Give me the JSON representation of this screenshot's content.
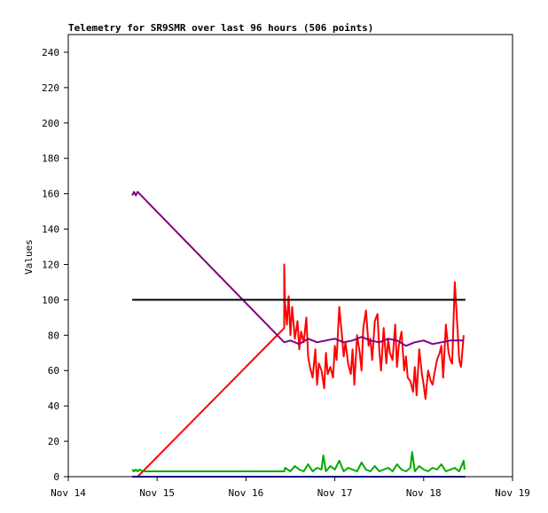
{
  "chart_data": {
    "type": "line",
    "title": "Telemetry for SR9SMR over last 96 hours (506 points)",
    "xlabel": "",
    "ylabel": "Values",
    "xlim": [
      "Nov 14",
      "Nov 19"
    ],
    "x_ticks": [
      "Nov 14",
      "Nov 15",
      "Nov 16",
      "Nov 17",
      "Nov 18",
      "Nov 19"
    ],
    "ylim": [
      0,
      250
    ],
    "y_ticks": [
      0,
      20,
      40,
      60,
      80,
      100,
      120,
      140,
      160,
      180,
      200,
      220,
      240
    ],
    "grid": false,
    "legend": "none",
    "series": [
      {
        "color": "#ff0000",
        "x": [
          14.78,
          16.43,
          16.43,
          16.44,
          16.46,
          16.48,
          16.5,
          16.52,
          16.55,
          16.58,
          16.6,
          16.62,
          16.65,
          16.68,
          16.7,
          16.72,
          16.75,
          16.78,
          16.8,
          16.82,
          16.85,
          16.88,
          16.9,
          16.92,
          16.95,
          16.98,
          17.0,
          17.02,
          17.05,
          17.08,
          17.1,
          17.12,
          17.15,
          17.18,
          17.2,
          17.22,
          17.25,
          17.28,
          17.3,
          17.32,
          17.35,
          17.38,
          17.4,
          17.42,
          17.45,
          17.48,
          17.5,
          17.52,
          17.55,
          17.58,
          17.6,
          17.62,
          17.65,
          17.68,
          17.7,
          17.72,
          17.75,
          17.78,
          17.8,
          17.82,
          17.85,
          17.88,
          17.9,
          17.92,
          17.95,
          17.98,
          18.0,
          18.02,
          18.05,
          18.08,
          18.1,
          18.12,
          18.15,
          18.18,
          18.2,
          18.22,
          18.25,
          18.28,
          18.3,
          18.32,
          18.35,
          18.38,
          18.4,
          18.42,
          18.45
        ],
        "y": [
          0,
          84,
          120,
          98,
          86,
          102,
          80,
          96,
          78,
          88,
          72,
          82,
          76,
          90,
          68,
          62,
          56,
          72,
          52,
          64,
          60,
          50,
          70,
          58,
          62,
          56,
          74,
          66,
          96,
          80,
          68,
          76,
          64,
          58,
          72,
          52,
          80,
          70,
          60,
          84,
          94,
          74,
          78,
          66,
          88,
          92,
          72,
          60,
          84,
          64,
          78,
          70,
          66,
          86,
          62,
          74,
          82,
          60,
          68,
          56,
          54,
          48,
          62,
          46,
          72,
          58,
          52,
          44,
          60,
          54,
          52,
          58,
          66,
          70,
          74,
          56,
          86,
          70,
          66,
          64,
          110,
          84,
          66,
          62,
          80
        ]
      },
      {
        "color": "#800080",
        "x": [
          14.72,
          14.74,
          14.76,
          14.78,
          14.8,
          16.43,
          16.5,
          16.6,
          16.7,
          16.8,
          16.9,
          17.0,
          17.1,
          17.2,
          17.3,
          17.4,
          17.5,
          17.6,
          17.7,
          17.8,
          17.9,
          18.0,
          18.1,
          18.2,
          18.3,
          18.4,
          18.45
        ],
        "y": [
          159,
          161,
          159,
          161,
          160,
          76,
          77,
          75,
          78,
          76,
          77,
          78,
          76,
          77,
          79,
          77,
          76,
          78,
          77,
          74,
          76,
          77,
          75,
          76,
          77,
          77,
          77
        ]
      },
      {
        "color": "#000000",
        "x": [
          14.72,
          18.47
        ],
        "y": [
          100,
          100
        ]
      },
      {
        "color": "#00aa00",
        "x": [
          14.72,
          14.74,
          14.76,
          14.78,
          14.8,
          14.84,
          16.43,
          16.44,
          16.5,
          16.55,
          16.6,
          16.65,
          16.7,
          16.75,
          16.8,
          16.85,
          16.87,
          16.9,
          16.95,
          17.0,
          17.05,
          17.1,
          17.15,
          17.2,
          17.25,
          17.3,
          17.35,
          17.4,
          17.45,
          17.5,
          17.55,
          17.6,
          17.65,
          17.7,
          17.75,
          17.8,
          17.85,
          17.87,
          17.9,
          17.95,
          18.0,
          18.05,
          18.1,
          18.15,
          18.2,
          18.25,
          18.3,
          18.35,
          18.4,
          18.45,
          18.46
        ],
        "y": [
          4,
          3,
          4,
          3,
          4,
          3,
          3,
          5,
          3,
          6,
          4,
          3,
          7,
          3,
          5,
          4,
          12,
          3,
          6,
          4,
          9,
          3,
          5,
          4,
          3,
          8,
          4,
          3,
          6,
          3,
          4,
          5,
          3,
          7,
          4,
          3,
          5,
          14,
          3,
          6,
          4,
          3,
          5,
          4,
          7,
          3,
          4,
          5,
          3,
          9,
          4
        ]
      },
      {
        "color": "#0000ff",
        "x": [
          14.72,
          18.47
        ],
        "y": [
          0,
          0
        ]
      }
    ]
  }
}
